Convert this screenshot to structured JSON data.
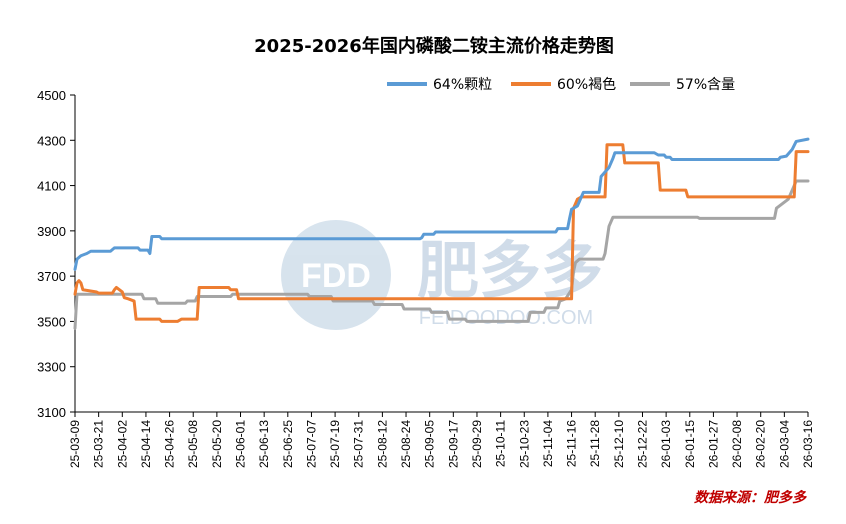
{
  "chart_data": {
    "type": "line",
    "title": "2025-2026年国内磷酸二铵主流价格走势图",
    "xlabel": "",
    "ylabel": "",
    "ylim": [
      3100,
      4500
    ],
    "yticks": [
      3100,
      3300,
      3500,
      3700,
      3900,
      4100,
      4300,
      4500
    ],
    "xlim": [
      "25-03-09",
      "26-03-16"
    ],
    "legend_position": "top-right",
    "grid": false,
    "x_tick_labels": [
      "25-03-09",
      "25-03-21",
      "25-04-02",
      "25-04-14",
      "25-04-26",
      "25-05-08",
      "25-05-20",
      "25-06-01",
      "25-06-13",
      "25-06-25",
      "25-07-07",
      "25-07-19",
      "25-07-31",
      "25-08-12",
      "25-08-24",
      "25-09-05",
      "25-09-17",
      "25-09-29",
      "25-10-11",
      "25-10-23",
      "25-11-04",
      "25-11-16",
      "25-11-28",
      "25-12-10",
      "25-12-22",
      "26-01-03",
      "26-01-15",
      "26-01-27",
      "26-02-08",
      "26-02-20",
      "26-03-04",
      "26-03-16"
    ],
    "series": [
      {
        "name": "64%颗粒",
        "color": "#5b9bd5",
        "points": [
          [
            "25-03-09",
            3730
          ],
          [
            "25-03-10",
            3775
          ],
          [
            "25-03-12",
            3790
          ],
          [
            "25-03-15",
            3800
          ],
          [
            "25-03-17",
            3810
          ],
          [
            "25-03-27",
            3810
          ],
          [
            "25-03-29",
            3825
          ],
          [
            "25-04-10",
            3825
          ],
          [
            "25-04-11",
            3815
          ],
          [
            "25-04-15",
            3815
          ],
          [
            "25-04-16",
            3800
          ],
          [
            "25-04-17",
            3875
          ],
          [
            "25-04-21",
            3875
          ],
          [
            "25-04-22",
            3865
          ],
          [
            "25-08-31",
            3865
          ],
          [
            "25-09-01",
            3870
          ],
          [
            "25-09-02",
            3885
          ],
          [
            "25-09-07",
            3885
          ],
          [
            "25-09-08",
            3895
          ],
          [
            "25-11-08",
            3895
          ],
          [
            "25-11-09",
            3910
          ],
          [
            "25-11-14",
            3910
          ],
          [
            "25-11-15",
            3955
          ],
          [
            "25-11-16",
            3995
          ],
          [
            "25-11-19",
            4010
          ],
          [
            "25-11-21",
            4050
          ],
          [
            "25-11-22",
            4070
          ],
          [
            "25-11-30",
            4070
          ],
          [
            "25-12-01",
            4140
          ],
          [
            "25-12-05",
            4180
          ],
          [
            "25-12-06",
            4200
          ],
          [
            "25-12-07",
            4220
          ],
          [
            "25-12-08",
            4245
          ],
          [
            "25-12-28",
            4245
          ],
          [
            "25-12-30",
            4235
          ],
          [
            "26-01-02",
            4235
          ],
          [
            "26-01-03",
            4225
          ],
          [
            "26-01-05",
            4225
          ],
          [
            "26-01-06",
            4215
          ],
          [
            "26-03-01",
            4215
          ],
          [
            "26-03-02",
            4225
          ],
          [
            "26-03-05",
            4230
          ],
          [
            "26-03-08",
            4260
          ],
          [
            "26-03-10",
            4295
          ],
          [
            "26-03-16",
            4305
          ]
        ]
      },
      {
        "name": "60%褐色",
        "color": "#ed7d31",
        "points": [
          [
            "25-03-09",
            3620
          ],
          [
            "25-03-10",
            3670
          ],
          [
            "25-03-11",
            3680
          ],
          [
            "25-03-12",
            3670
          ],
          [
            "25-03-13",
            3640
          ],
          [
            "25-03-20",
            3630
          ],
          [
            "25-03-21",
            3625
          ],
          [
            "25-03-28",
            3625
          ],
          [
            "25-03-29",
            3640
          ],
          [
            "25-03-30",
            3650
          ],
          [
            "25-04-02",
            3630
          ],
          [
            "25-04-03",
            3605
          ],
          [
            "25-04-05",
            3600
          ],
          [
            "25-04-08",
            3590
          ],
          [
            "25-04-09",
            3510
          ],
          [
            "25-04-21",
            3510
          ],
          [
            "25-04-22",
            3500
          ],
          [
            "25-04-30",
            3500
          ],
          [
            "25-05-02",
            3510
          ],
          [
            "25-05-10",
            3510
          ],
          [
            "25-05-11",
            3650
          ],
          [
            "25-05-26",
            3650
          ],
          [
            "25-05-27",
            3640
          ],
          [
            "25-05-30",
            3640
          ],
          [
            "25-05-31",
            3600
          ],
          [
            "25-11-16",
            3600
          ],
          [
            "25-11-17",
            4000
          ],
          [
            "25-11-18",
            4020
          ],
          [
            "25-11-19",
            4040
          ],
          [
            "25-11-21",
            4050
          ],
          [
            "25-12-03",
            4050
          ],
          [
            "25-12-04",
            4280
          ],
          [
            "25-12-12",
            4280
          ],
          [
            "25-12-13",
            4200
          ],
          [
            "25-12-30",
            4200
          ],
          [
            "25-12-31",
            4080
          ],
          [
            "26-01-13",
            4080
          ],
          [
            "26-01-14",
            4050
          ],
          [
            "26-03-09",
            4050
          ],
          [
            "26-03-10",
            4250
          ],
          [
            "26-03-16",
            4250
          ]
        ]
      },
      {
        "name": "57%含量",
        "color": "#a5a5a5",
        "points": [
          [
            "25-03-09",
            3470
          ],
          [
            "25-03-10",
            3620
          ],
          [
            "25-04-12",
            3620
          ],
          [
            "25-04-13",
            3600
          ],
          [
            "25-04-19",
            3600
          ],
          [
            "25-04-20",
            3580
          ],
          [
            "25-05-04",
            3580
          ],
          [
            "25-05-05",
            3590
          ],
          [
            "25-05-09",
            3590
          ],
          [
            "25-05-10",
            3610
          ],
          [
            "25-05-27",
            3610
          ],
          [
            "25-05-28",
            3620
          ],
          [
            "25-07-05",
            3620
          ],
          [
            "25-07-06",
            3610
          ],
          [
            "25-07-17",
            3610
          ],
          [
            "25-07-18",
            3590
          ],
          [
            "25-08-07",
            3590
          ],
          [
            "25-08-08",
            3575
          ],
          [
            "25-08-22",
            3575
          ],
          [
            "25-08-23",
            3555
          ],
          [
            "25-09-05",
            3555
          ],
          [
            "25-09-06",
            3540
          ],
          [
            "25-09-14",
            3540
          ],
          [
            "25-09-15",
            3510
          ],
          [
            "25-09-23",
            3510
          ],
          [
            "25-09-24",
            3500
          ],
          [
            "25-10-25",
            3500
          ],
          [
            "25-10-26",
            3540
          ],
          [
            "25-11-02",
            3540
          ],
          [
            "25-11-03",
            3560
          ],
          [
            "25-11-09",
            3560
          ],
          [
            "25-11-10",
            3590
          ],
          [
            "25-11-13",
            3600
          ],
          [
            "25-11-16",
            3640
          ],
          [
            "25-11-17",
            3720
          ],
          [
            "25-11-18",
            3760
          ],
          [
            "25-11-20",
            3775
          ],
          [
            "25-12-02",
            3775
          ],
          [
            "25-12-03",
            3800
          ],
          [
            "25-12-05",
            3920
          ],
          [
            "25-12-07",
            3960
          ],
          [
            "26-01-19",
            3960
          ],
          [
            "26-01-20",
            3955
          ],
          [
            "26-02-27",
            3955
          ],
          [
            "26-02-28",
            4000
          ],
          [
            "26-03-03",
            4020
          ],
          [
            "26-03-06",
            4040
          ],
          [
            "26-03-09",
            4100
          ],
          [
            "26-03-10",
            4120
          ],
          [
            "26-03-16",
            4120
          ]
        ]
      }
    ]
  },
  "source_text": "数据来源：肥多多",
  "watermark": {
    "logo_text": "FDD",
    "brand_text": "肥多多",
    "url_text": "FEIDOODOO.COM"
  }
}
